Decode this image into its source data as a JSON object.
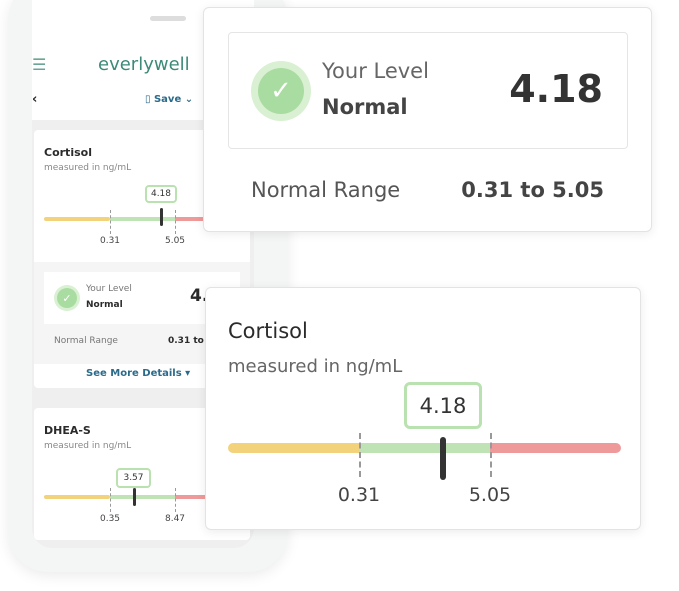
{
  "phone": {
    "brand": "everlywell",
    "save_label": "Save",
    "cortisol": {
      "title": "Cortisol",
      "unit": "measured in ng/mL",
      "value": "4.18",
      "low": "0.31",
      "high": "5.05"
    },
    "level": {
      "label": "Your Level",
      "status": "Normal",
      "value": "4."
    },
    "range": {
      "label": "Normal Range",
      "value": "0.31 to"
    },
    "details_label": "See More Details",
    "dhea": {
      "title": "DHEA-S",
      "unit": "measured in ng/mL",
      "value": "3.57",
      "low": "0.35",
      "high": "8.47"
    }
  },
  "level_card": {
    "label": "Your Level",
    "status": "Normal",
    "value": "4.18",
    "range_label": "Normal Range",
    "range_value": "0.31 to 5.05"
  },
  "cortisol_card": {
    "title": "Cortisol",
    "unit": "measured in ng/mL",
    "value": "4.18",
    "low": "0.31",
    "high": "5.05"
  },
  "colors": {
    "brand": "#3d8a78",
    "link": "#2a6a8a",
    "low": "#f3d27c",
    "normal": "#bfe3b5",
    "high": "#ef9a9a"
  }
}
